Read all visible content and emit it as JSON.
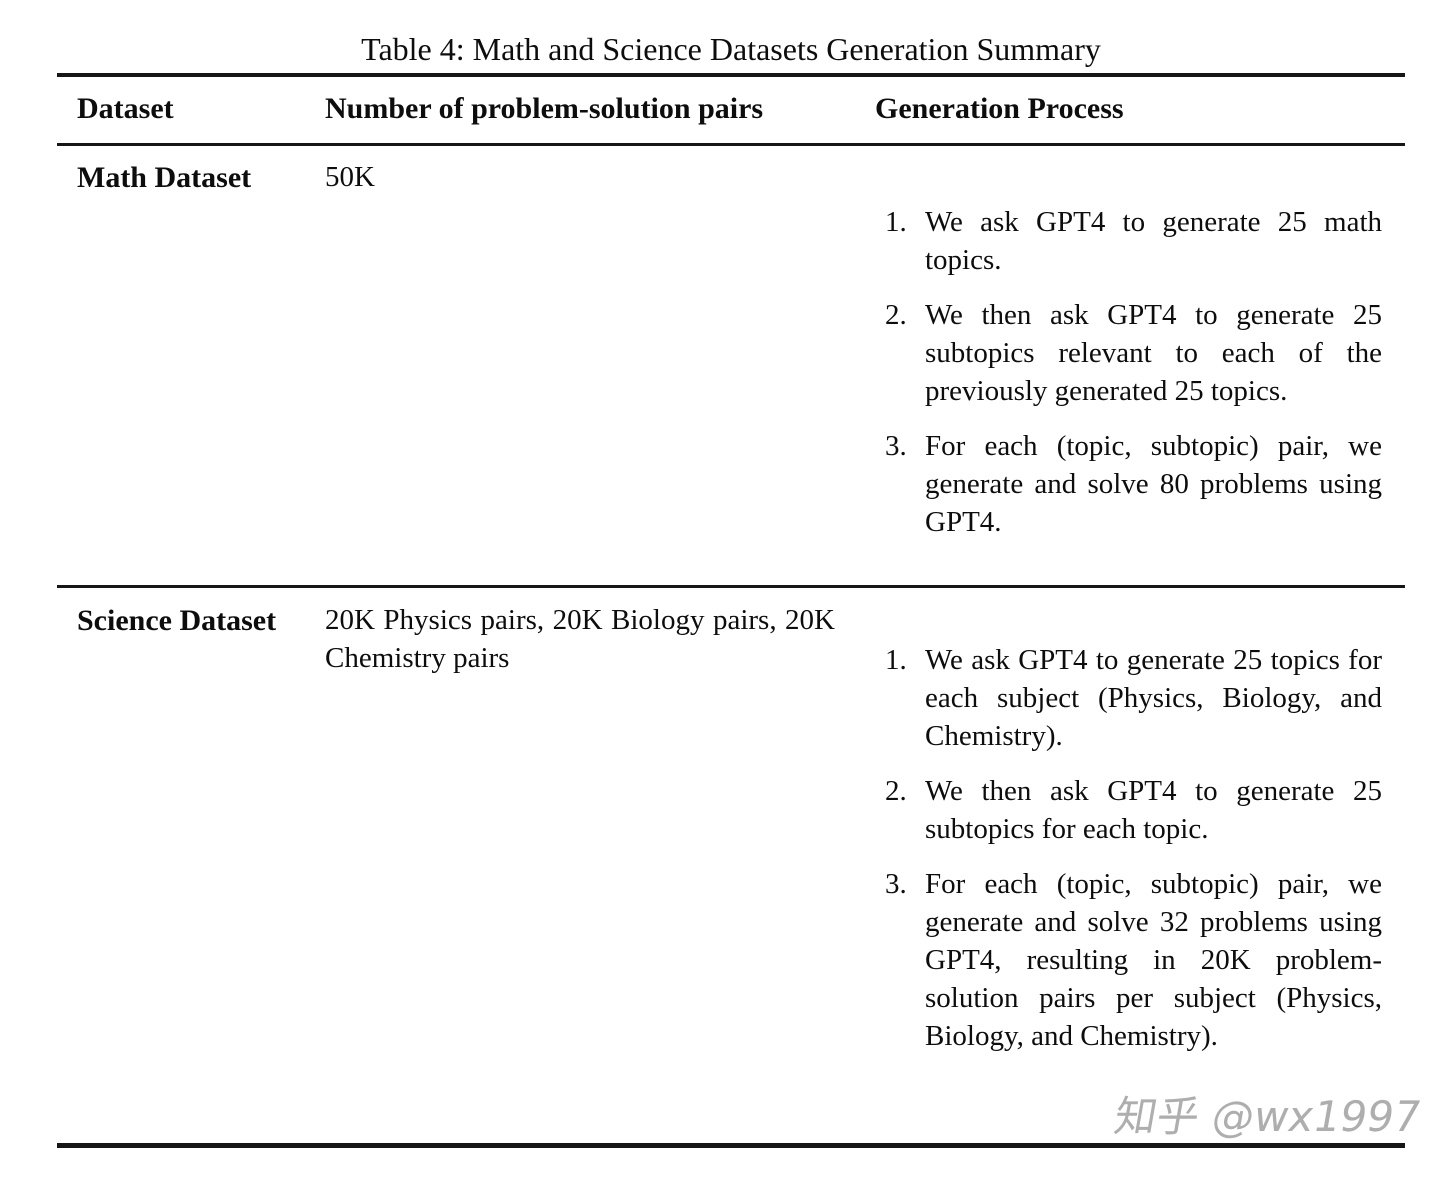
{
  "caption": "Table 4: Math and Science Datasets Generation Summary",
  "table": {
    "headers": [
      "Dataset",
      "Number of problem-solution pairs",
      "Generation Process"
    ],
    "rows": [
      {
        "dataset": "Math Dataset",
        "pairs": "50K",
        "process": [
          "We ask GPT4 to generate 25 math topics.",
          "We then ask GPT4 to generate 25 subtopics relevant to each of the previously generated 25 topics.",
          "For each (topic, subtopic) pair, we generate and solve 80 problems using GPT4."
        ]
      },
      {
        "dataset": "Science Dataset",
        "pairs": "20K Physics pairs, 20K Biology pairs, 20K Chemistry pairs",
        "process": [
          "We ask GPT4 to generate 25 topics for each subject (Physics, Biology, and Chemistry).",
          "We then ask GPT4 to generate 25 subtopics for each topic.",
          "For each (topic, subtopic) pair, we generate and solve 32 problems using GPT4, resulting in 20K problem-solution pairs per subject (Physics, Biology, and Chemistry)."
        ]
      }
    ]
  },
  "watermark": "知乎 @wx1997",
  "colors": {
    "text": "#0d0d0d",
    "rule": "#161616",
    "watermark": "#aeaeae",
    "background": "#ffffff"
  }
}
